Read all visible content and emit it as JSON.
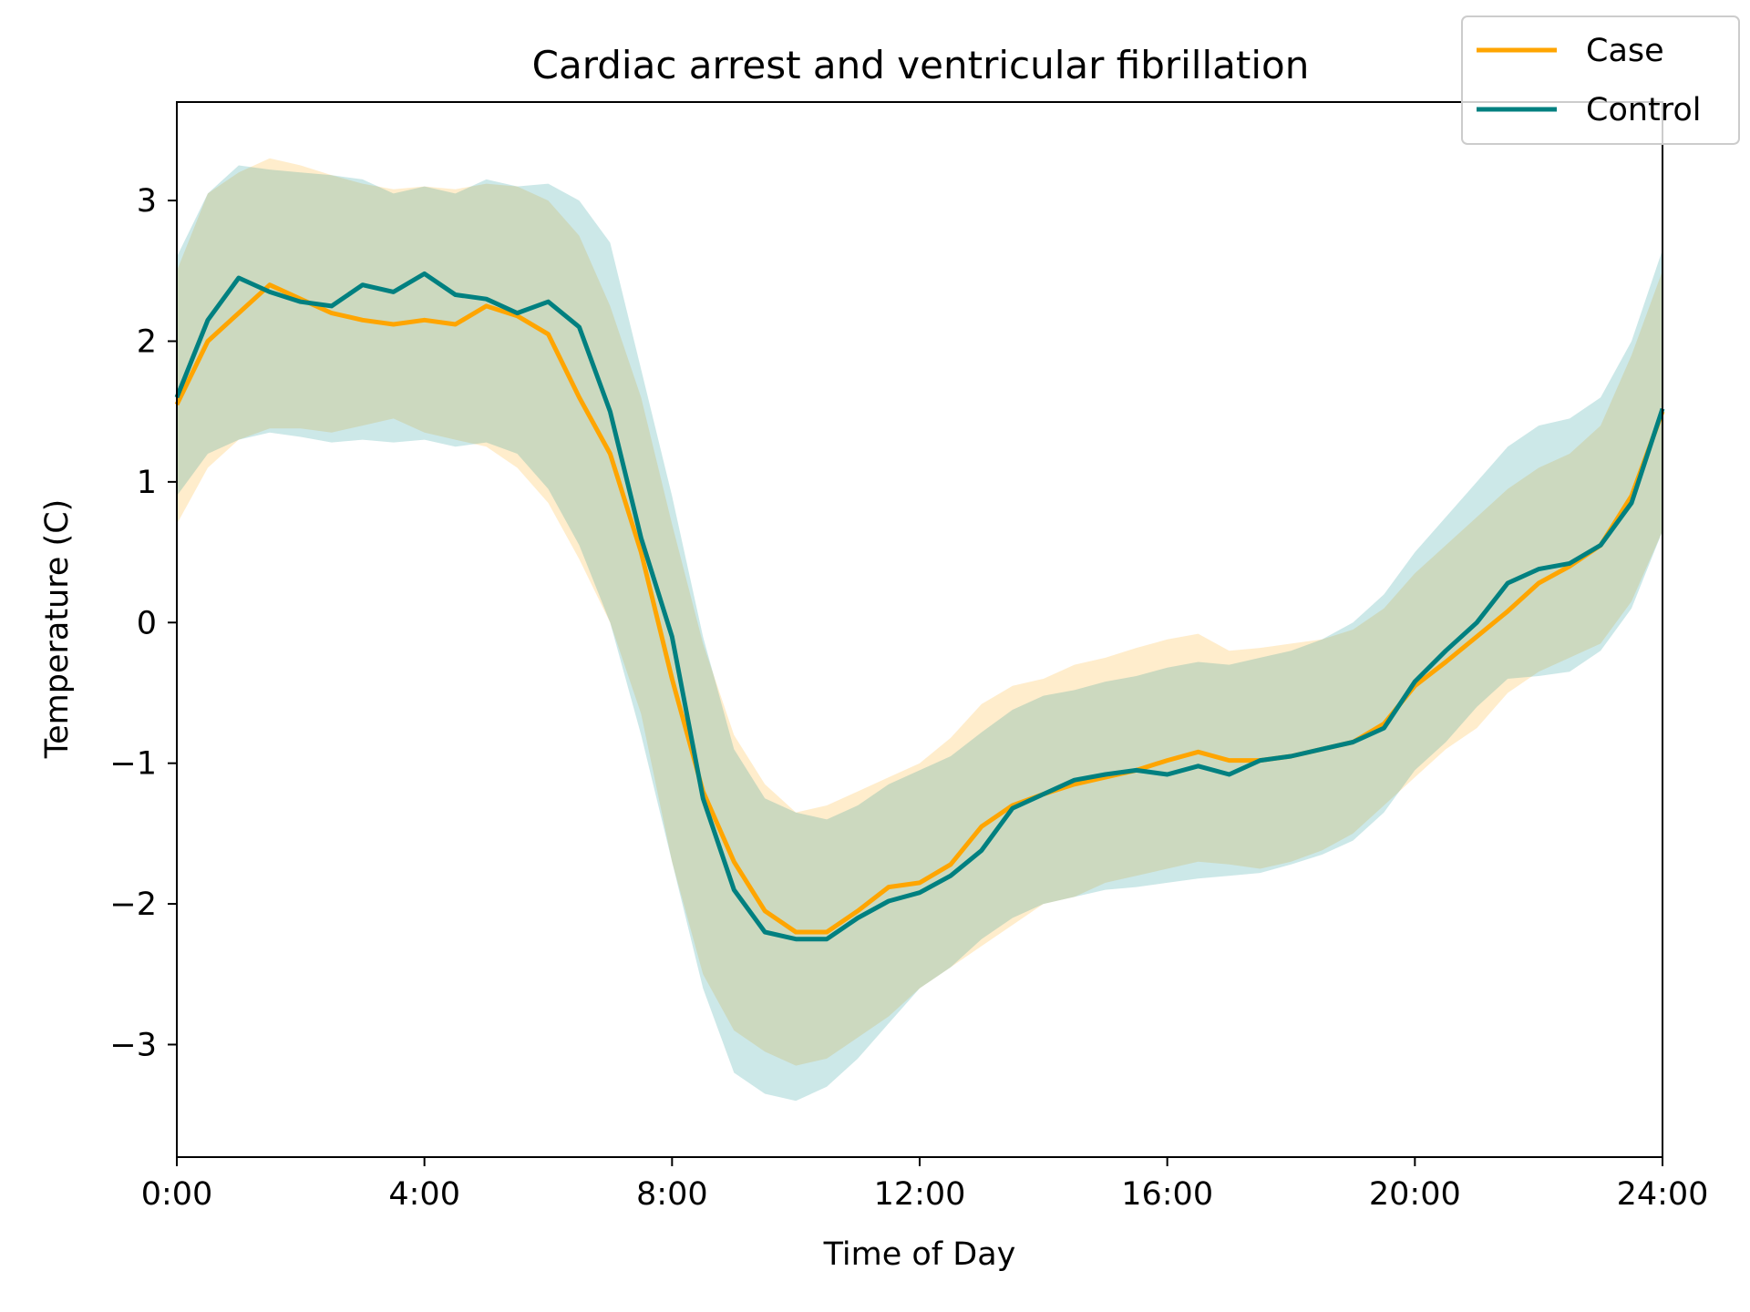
{
  "chart_data": {
    "type": "line",
    "title": "Cardiac arrest and ventricular fibrillation",
    "xlabel": "Time of Day",
    "ylabel": "Temperature (C)",
    "xlim": [
      0,
      24
    ],
    "ylim": [
      -3.8,
      3.7
    ],
    "xticks": [
      0,
      4,
      8,
      12,
      16,
      20,
      24
    ],
    "xtick_labels": [
      "0:00",
      "4:00",
      "8:00",
      "12:00",
      "16:00",
      "20:00",
      "24:00"
    ],
    "yticks": [
      3,
      2,
      1,
      0,
      -1,
      -2,
      -3
    ],
    "ytick_labels": [
      "3",
      "2",
      "1",
      "0",
      "−1",
      "−2",
      "−3"
    ],
    "legend_position": "top-right",
    "grid": false,
    "x": [
      0,
      0.5,
      1,
      1.5,
      2,
      2.5,
      3,
      3.5,
      4,
      4.5,
      5,
      5.5,
      6,
      6.5,
      7,
      7.5,
      8,
      8.5,
      9,
      9.5,
      10,
      10.5,
      11,
      11.5,
      12,
      12.5,
      13,
      13.5,
      14,
      14.5,
      15,
      15.5,
      16,
      16.5,
      17,
      17.5,
      18,
      18.5,
      19,
      19.5,
      20,
      20.5,
      21,
      21.5,
      22,
      22.5,
      23,
      23.5,
      24
    ],
    "series": [
      {
        "name": "Case",
        "color": "#FFA500",
        "band_color": "#FFA500",
        "values": [
          1.55,
          2.0,
          2.2,
          2.4,
          2.3,
          2.2,
          2.15,
          2.12,
          2.15,
          2.12,
          2.25,
          2.18,
          2.05,
          1.6,
          1.2,
          0.5,
          -0.4,
          -1.2,
          -1.7,
          -2.05,
          -2.2,
          -2.2,
          -2.05,
          -1.88,
          -1.85,
          -1.72,
          -1.45,
          -1.3,
          -1.22,
          -1.15,
          -1.1,
          -1.05,
          -0.98,
          -0.92,
          -0.98,
          -0.98,
          -0.95,
          -0.9,
          -0.85,
          -0.72,
          -0.45,
          -0.28,
          -0.1,
          0.08,
          0.28,
          0.4,
          0.55,
          0.9,
          1.5
        ],
        "lower": [
          0.7,
          1.1,
          1.3,
          1.38,
          1.38,
          1.35,
          1.4,
          1.45,
          1.35,
          1.3,
          1.25,
          1.1,
          0.85,
          0.45,
          0.0,
          -0.65,
          -1.7,
          -2.5,
          -2.9,
          -3.05,
          -3.15,
          -3.1,
          -2.95,
          -2.8,
          -2.6,
          -2.45,
          -2.3,
          -2.15,
          -2.0,
          -1.95,
          -1.85,
          -1.8,
          -1.75,
          -1.7,
          -1.72,
          -1.75,
          -1.7,
          -1.62,
          -1.5,
          -1.3,
          -1.1,
          -0.9,
          -0.75,
          -0.5,
          -0.35,
          -0.25,
          -0.15,
          0.15,
          0.65
        ],
        "upper": [
          2.5,
          3.05,
          3.2,
          3.3,
          3.25,
          3.18,
          3.12,
          3.08,
          3.1,
          3.08,
          3.12,
          3.1,
          3.0,
          2.75,
          2.25,
          1.6,
          0.7,
          -0.15,
          -0.8,
          -1.15,
          -1.35,
          -1.3,
          -1.2,
          -1.1,
          -1.0,
          -0.82,
          -0.58,
          -0.45,
          -0.4,
          -0.3,
          -0.25,
          -0.18,
          -0.12,
          -0.08,
          -0.2,
          -0.18,
          -0.15,
          -0.12,
          -0.05,
          0.1,
          0.35,
          0.55,
          0.75,
          0.95,
          1.1,
          1.2,
          1.4,
          1.9,
          2.5
        ]
      },
      {
        "name": "Control",
        "color": "#008080",
        "band_color": "#008B8B",
        "values": [
          1.6,
          2.15,
          2.45,
          2.35,
          2.28,
          2.25,
          2.4,
          2.35,
          2.48,
          2.33,
          2.3,
          2.2,
          2.28,
          2.1,
          1.5,
          0.6,
          -0.1,
          -1.25,
          -1.9,
          -2.2,
          -2.25,
          -2.25,
          -2.1,
          -1.98,
          -1.92,
          -1.8,
          -1.62,
          -1.32,
          -1.22,
          -1.12,
          -1.08,
          -1.05,
          -1.08,
          -1.02,
          -1.08,
          -0.98,
          -0.95,
          -0.9,
          -0.85,
          -0.75,
          -0.42,
          -0.2,
          0.0,
          0.28,
          0.38,
          0.42,
          0.55,
          0.85,
          1.52
        ],
        "lower": [
          0.9,
          1.2,
          1.3,
          1.35,
          1.32,
          1.28,
          1.3,
          1.28,
          1.3,
          1.25,
          1.28,
          1.2,
          0.95,
          0.55,
          0.0,
          -0.8,
          -1.7,
          -2.6,
          -3.2,
          -3.35,
          -3.4,
          -3.3,
          -3.1,
          -2.85,
          -2.6,
          -2.45,
          -2.25,
          -2.1,
          -2.0,
          -1.95,
          -1.9,
          -1.88,
          -1.85,
          -1.82,
          -1.8,
          -1.78,
          -1.72,
          -1.65,
          -1.55,
          -1.35,
          -1.05,
          -0.85,
          -0.6,
          -0.4,
          -0.38,
          -0.35,
          -0.2,
          0.1,
          0.65
        ],
        "upper": [
          2.6,
          3.05,
          3.25,
          3.22,
          3.2,
          3.18,
          3.15,
          3.05,
          3.1,
          3.05,
          3.15,
          3.1,
          3.12,
          3.0,
          2.7,
          1.8,
          0.9,
          -0.1,
          -0.9,
          -1.25,
          -1.35,
          -1.4,
          -1.3,
          -1.15,
          -1.05,
          -0.95,
          -0.78,
          -0.62,
          -0.52,
          -0.48,
          -0.42,
          -0.38,
          -0.32,
          -0.28,
          -0.3,
          -0.25,
          -0.2,
          -0.12,
          0.0,
          0.2,
          0.5,
          0.75,
          1.0,
          1.25,
          1.4,
          1.45,
          1.6,
          2.0,
          2.65
        ]
      }
    ]
  }
}
